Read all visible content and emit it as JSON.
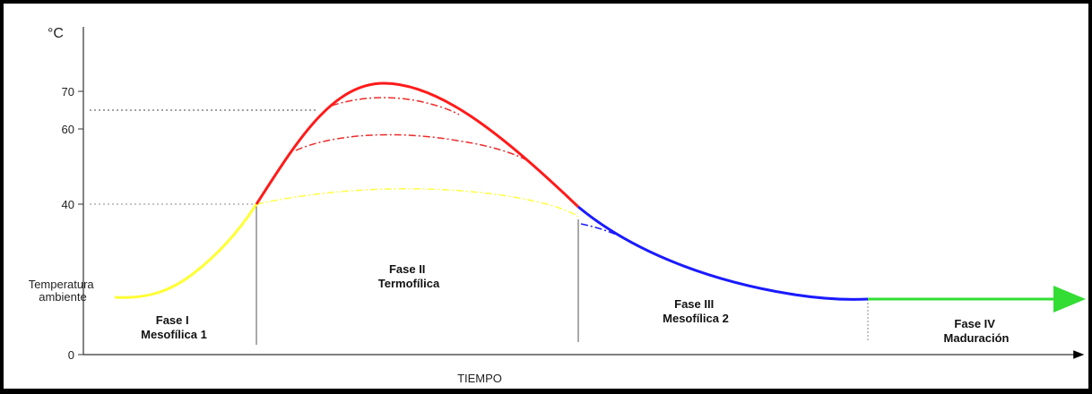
{
  "chart_data": {
    "type": "line",
    "unit_label": "°C",
    "xlabel": "TIEMPO",
    "ylim": [
      0,
      75
    ],
    "yticks": [
      {
        "value": 0,
        "label": "0"
      },
      {
        "value": 40,
        "label": "40"
      },
      {
        "value": 60,
        "label": "60"
      },
      {
        "value": 70,
        "label": "70"
      }
    ],
    "ambient_label": [
      "Temperatura",
      "ambiente"
    ],
    "phases": [
      {
        "lines": [
          "Fase I",
          "Mesofílica 1"
        ],
        "color": "#ffff33"
      },
      {
        "lines": [
          "Fase II",
          "Termofílica"
        ],
        "color": "#ff1a1a"
      },
      {
        "lines": [
          "Fase III",
          "Mesofílica 2"
        ],
        "color": "#1a1aff"
      },
      {
        "lines": [
          "Fase IV",
          "Maduración"
        ],
        "color": "#33dd33"
      }
    ]
  }
}
